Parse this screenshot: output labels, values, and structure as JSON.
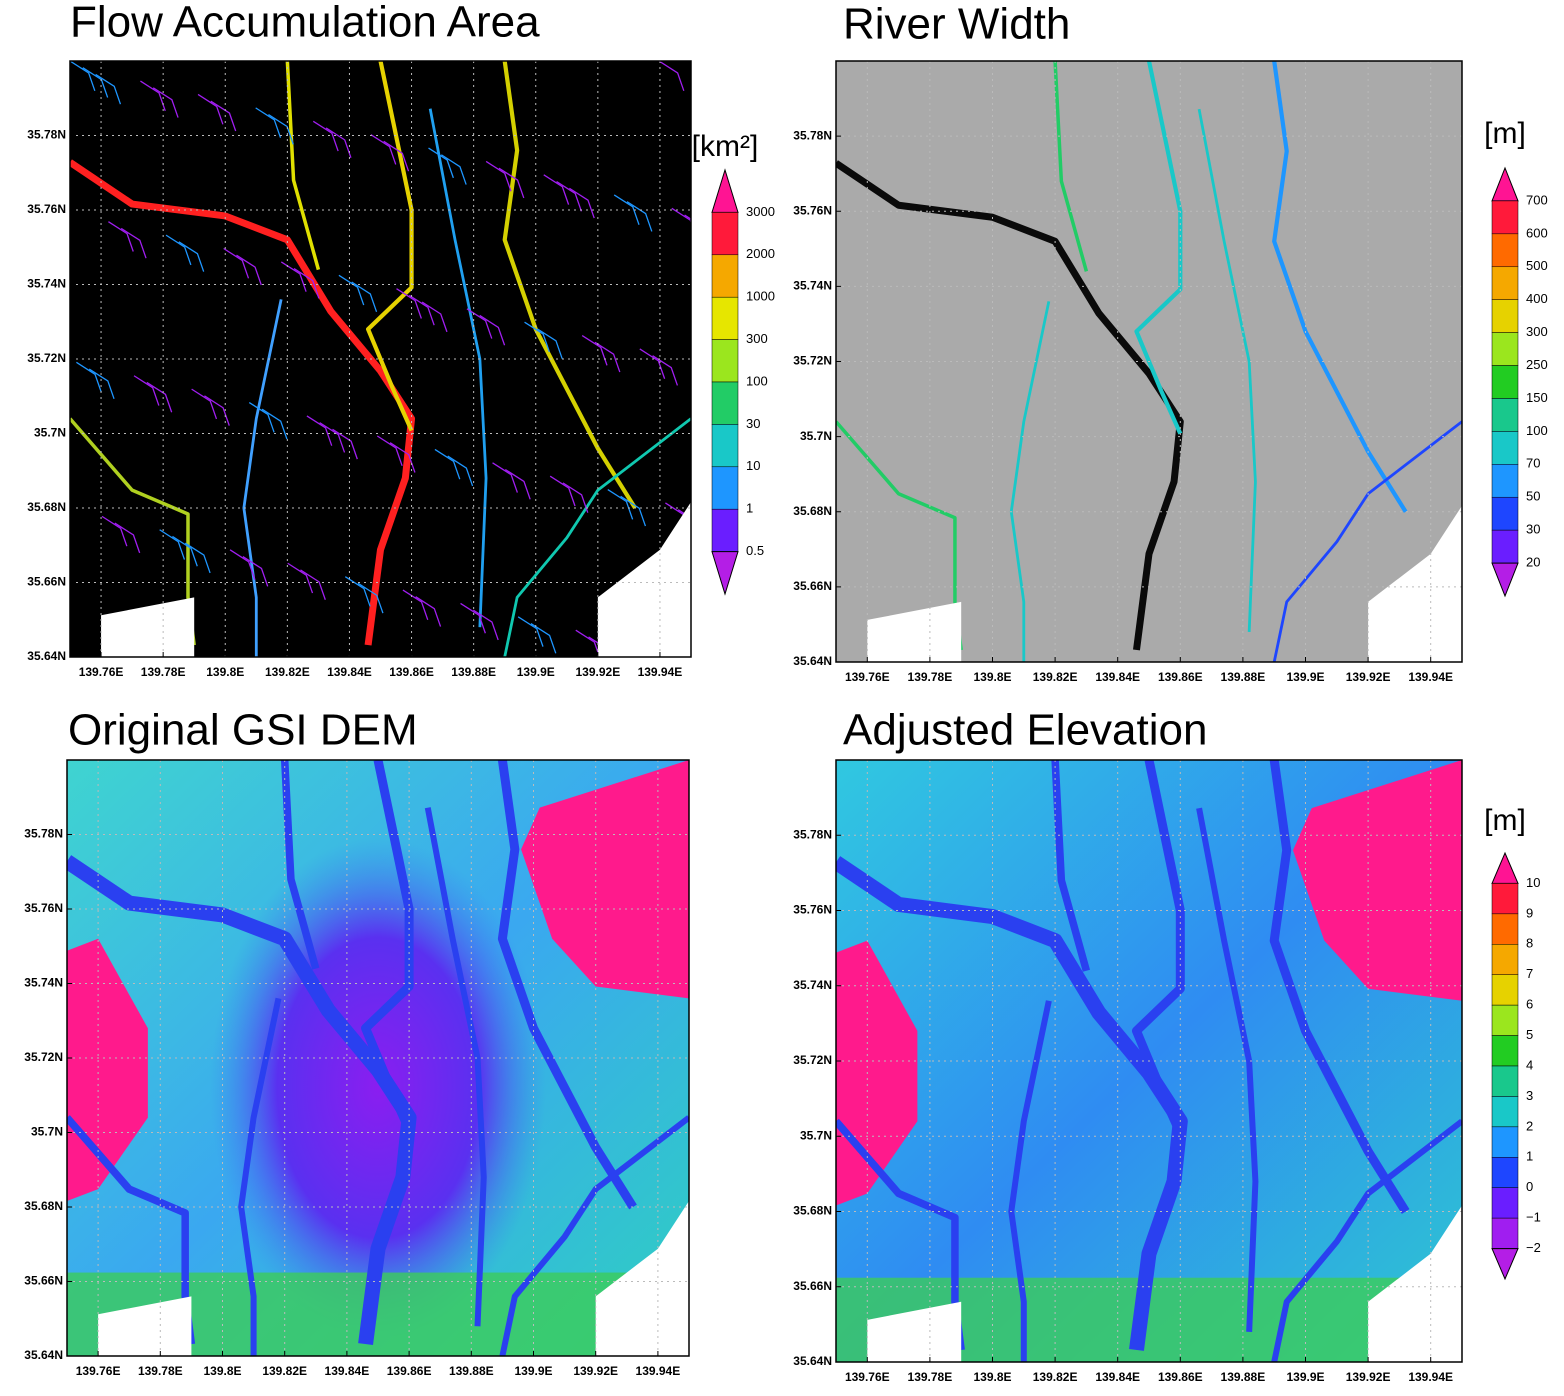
{
  "panels": [
    {
      "title": "Flow Accumulation Area",
      "xticks": [
        "139.76E",
        "139.78E",
        "139.8E",
        "139.82E",
        "139.84E",
        "139.86E",
        "139.88E",
        "139.9E",
        "139.92E",
        "139.94E"
      ],
      "yticks": [
        "35.64N",
        "35.66N",
        "35.68N",
        "35.7N",
        "35.72N",
        "35.74N",
        "35.76N",
        "35.78N"
      ],
      "colorbar": {
        "unit": "[km²]",
        "labels": [
          "3000",
          "2000",
          "1000",
          "300",
          "100",
          "30",
          "10",
          "1",
          "0.5"
        ],
        "colors": [
          "#ff1493",
          "#ff1a3a",
          "#f5a800",
          "#e6e600",
          "#9be61e",
          "#22cc66",
          "#19c8c8",
          "#1e96ff",
          "#6a1eff",
          "#b41ee6"
        ]
      }
    },
    {
      "title": "River Width",
      "xticks": [
        "139.76E",
        "139.78E",
        "139.8E",
        "139.82E",
        "139.84E",
        "139.86E",
        "139.88E",
        "139.9E",
        "139.92E",
        "139.94E"
      ],
      "yticks": [
        "35.64N",
        "35.66N",
        "35.68N",
        "35.7N",
        "35.72N",
        "35.74N",
        "35.76N",
        "35.78N"
      ],
      "colorbar": {
        "unit": "[m]",
        "labels": [
          "700",
          "600",
          "500",
          "400",
          "300",
          "250",
          "150",
          "100",
          "70",
          "50",
          "30",
          "20"
        ],
        "colors": [
          "#ff1493",
          "#ff1a3a",
          "#ff6a00",
          "#f5a800",
          "#e6d200",
          "#9be61e",
          "#22cc22",
          "#19c88c",
          "#19c8c8",
          "#1e96ff",
          "#1e46ff",
          "#6a1eff",
          "#b41ee6"
        ]
      }
    },
    {
      "title": "Original GSI DEM",
      "xticks": [
        "139.76E",
        "139.78E",
        "139.8E",
        "139.82E",
        "139.84E",
        "139.86E",
        "139.88E",
        "139.9E",
        "139.92E",
        "139.94E"
      ],
      "yticks": [
        "35.64N",
        "35.66N",
        "35.68N",
        "35.7N",
        "35.72N",
        "35.74N",
        "35.76N",
        "35.78N"
      ]
    },
    {
      "title": "Adjusted Elevation",
      "xticks": [
        "139.76E",
        "139.78E",
        "139.8E",
        "139.82E",
        "139.84E",
        "139.86E",
        "139.88E",
        "139.9E",
        "139.92E",
        "139.94E"
      ],
      "yticks": [
        "35.64N",
        "35.66N",
        "35.68N",
        "35.7N",
        "35.72N",
        "35.74N",
        "35.76N",
        "35.78N"
      ],
      "colorbar": {
        "unit": "[m]",
        "labels": [
          "10",
          "9",
          "8",
          "7",
          "6",
          "5",
          "4",
          "3",
          "2",
          "1",
          "0",
          "−1",
          "−2"
        ],
        "colors": [
          "#ff1493",
          "#ff1a3a",
          "#ff6a00",
          "#f5a800",
          "#e6d200",
          "#9be61e",
          "#22cc22",
          "#19c88c",
          "#19c8c8",
          "#1e96ff",
          "#1e46ff",
          "#6a1eff",
          "#a01ef0",
          "#b41ee6"
        ]
      }
    }
  ]
}
